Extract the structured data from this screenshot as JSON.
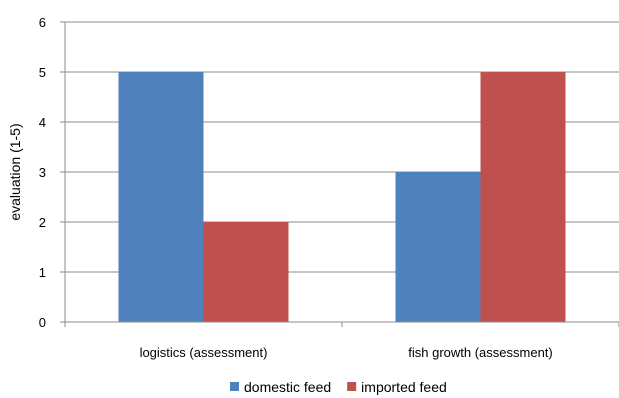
{
  "chart_data": {
    "type": "bar",
    "title": "",
    "xlabel": "",
    "ylabel": "evaluation (1-5)",
    "ylim": [
      0,
      6
    ],
    "yticks": [
      0,
      1,
      2,
      3,
      4,
      5,
      6
    ],
    "grid": true,
    "legend_position": "bottom",
    "categories": [
      "logistics (assessment)",
      "fish growth (assessment)"
    ],
    "series": [
      {
        "name": "domestic feed",
        "color": "#4f81bd",
        "values": [
          5,
          3
        ]
      },
      {
        "name": "imported feed",
        "color": "#c0504d",
        "values": [
          2,
          5
        ]
      }
    ]
  }
}
